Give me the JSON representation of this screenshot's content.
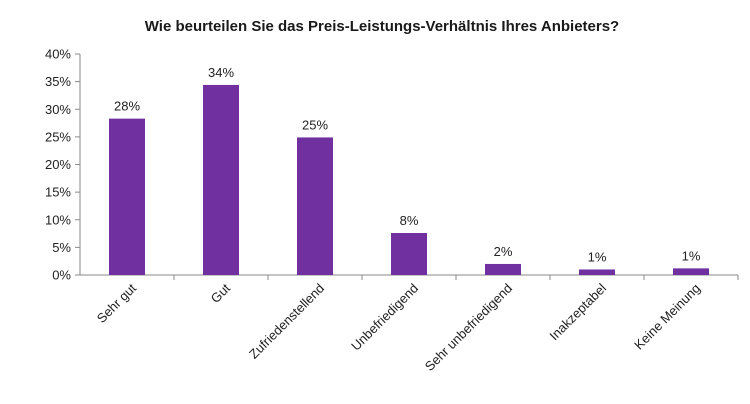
{
  "chart_data": {
    "type": "bar",
    "title": "Wie beurteilen Sie das Preis-Leistungs-Verhältnis Ihres Anbieters?",
    "categories": [
      "Sehr gut",
      "Gut",
      "Zufriedenstellend",
      "Unbefriedigend",
      "Sehr unbefriedigend",
      "Inakzeptabel",
      "Keine Meinung"
    ],
    "values": [
      28.3,
      34.4,
      24.9,
      7.6,
      2.0,
      1.0,
      1.2
    ],
    "data_labels": [
      "28%",
      "34%",
      "25%",
      "8%",
      "2%",
      "1%",
      "1%"
    ],
    "ylim": [
      0,
      40
    ],
    "yticks": [
      0,
      5,
      10,
      15,
      20,
      25,
      30,
      35,
      40
    ],
    "ytick_labels": [
      "0%",
      "5%",
      "10%",
      "15%",
      "20%",
      "25%",
      "30%",
      "35%",
      "40%"
    ],
    "xlabel": "",
    "ylabel": "",
    "grid": false,
    "bar_color": "#7030a0",
    "legend": "none"
  }
}
